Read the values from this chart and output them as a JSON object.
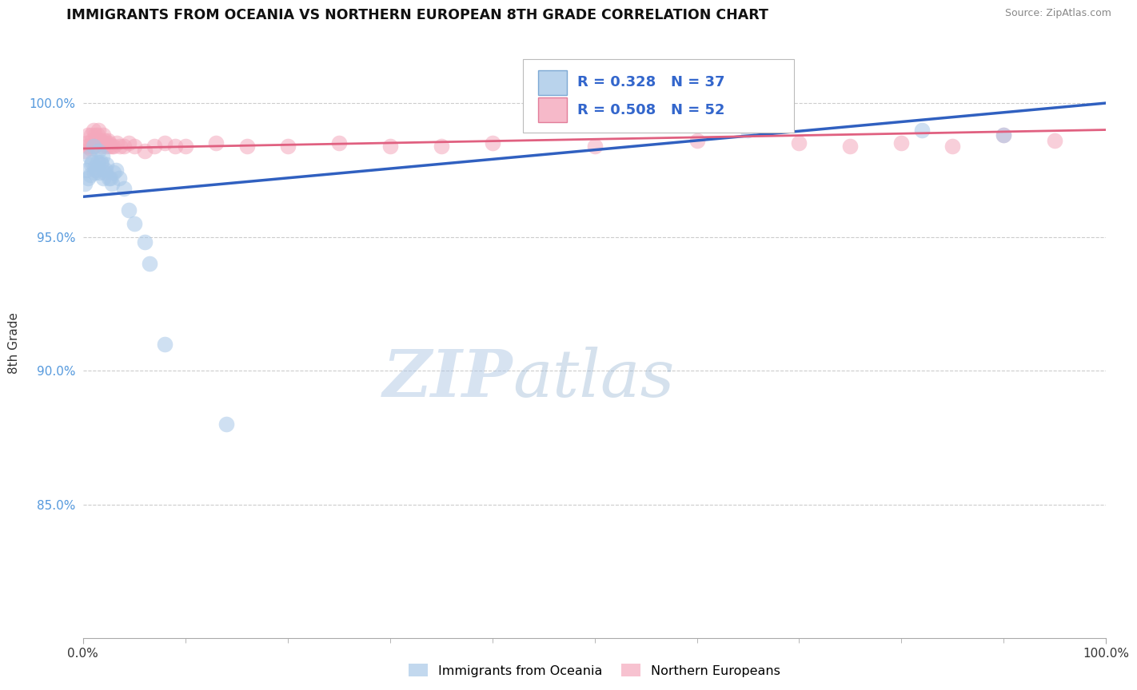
{
  "title": "IMMIGRANTS FROM OCEANIA VS NORTHERN EUROPEAN 8TH GRADE CORRELATION CHART",
  "source": "Source: ZipAtlas.com",
  "ylabel": "8th Grade",
  "xlim": [
    0.0,
    1.0
  ],
  "ylim": [
    0.8,
    1.021
  ],
  "yticks": [
    0.85,
    0.9,
    0.95,
    1.0
  ],
  "ytick_labels": [
    "85.0%",
    "90.0%",
    "95.0%",
    "100.0%"
  ],
  "oceania_color": "#a8c8e8",
  "northern_color": "#f4a8bc",
  "oceania_line_color": "#3060c0",
  "northern_line_color": "#e06080",
  "background_color": "#ffffff",
  "grid_color": "#cccccc",
  "oceania_x": [
    0.002,
    0.003,
    0.005,
    0.006,
    0.007,
    0.008,
    0.009,
    0.01,
    0.011,
    0.012,
    0.013,
    0.014,
    0.015,
    0.016,
    0.017,
    0.018,
    0.019,
    0.02,
    0.021,
    0.022,
    0.023,
    0.025,
    0.027,
    0.028,
    0.03,
    0.032,
    0.035,
    0.04,
    0.045,
    0.05,
    0.06,
    0.065,
    0.08,
    0.14,
    0.65,
    0.82,
    0.9
  ],
  "oceania_y": [
    0.97,
    0.975,
    0.972,
    0.98,
    0.973,
    0.977,
    0.978,
    0.984,
    0.974,
    0.976,
    0.975,
    0.978,
    0.982,
    0.974,
    0.978,
    0.977,
    0.98,
    0.972,
    0.974,
    0.975,
    0.977,
    0.972,
    0.972,
    0.97,
    0.974,
    0.975,
    0.972,
    0.968,
    0.96,
    0.955,
    0.948,
    0.94,
    0.91,
    0.88,
    0.99,
    0.99,
    0.988
  ],
  "northern_x": [
    0.002,
    0.003,
    0.004,
    0.005,
    0.006,
    0.007,
    0.008,
    0.009,
    0.01,
    0.011,
    0.012,
    0.013,
    0.014,
    0.015,
    0.016,
    0.017,
    0.018,
    0.019,
    0.02,
    0.021,
    0.022,
    0.023,
    0.024,
    0.025,
    0.026,
    0.028,
    0.03,
    0.033,
    0.036,
    0.04,
    0.045,
    0.05,
    0.06,
    0.07,
    0.08,
    0.09,
    0.1,
    0.13,
    0.16,
    0.2,
    0.25,
    0.3,
    0.35,
    0.4,
    0.5,
    0.6,
    0.7,
    0.75,
    0.8,
    0.85,
    0.9,
    0.95
  ],
  "northern_y": [
    0.982,
    0.985,
    0.984,
    0.988,
    0.984,
    0.983,
    0.988,
    0.986,
    0.99,
    0.984,
    0.988,
    0.985,
    0.988,
    0.99,
    0.985,
    0.986,
    0.984,
    0.985,
    0.988,
    0.986,
    0.985,
    0.984,
    0.986,
    0.985,
    0.984,
    0.984,
    0.984,
    0.985,
    0.984,
    0.984,
    0.985,
    0.984,
    0.982,
    0.984,
    0.985,
    0.984,
    0.984,
    0.985,
    0.984,
    0.984,
    0.985,
    0.984,
    0.984,
    0.985,
    0.984,
    0.986,
    0.985,
    0.984,
    0.985,
    0.984,
    0.988,
    0.986
  ],
  "legend_text_1": "R = 0.328   N = 37",
  "legend_text_2": "R = 0.508   N = 52",
  "watermark_zip": "ZIP",
  "watermark_atlas": "atlas"
}
